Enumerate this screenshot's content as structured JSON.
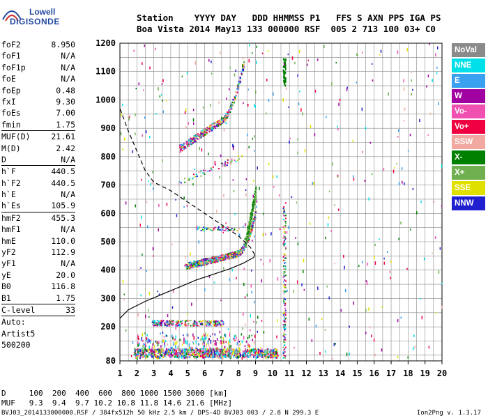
{
  "logo": {
    "line1": "Lowell",
    "line2": "DIGISONDE"
  },
  "header": {
    "line1": "Station    YYYY DAY   DDD HHMMSS P1   FFS S AXN PPS IGA PS",
    "line2": "Boa Vista 2014 May13 133 000000 RSF  005 2 713 100 03+ C0"
  },
  "params": [
    {
      "label": "foF2",
      "value": "8.950"
    },
    {
      "label": "foF1",
      "value": "N/A"
    },
    {
      "label": "foF1p",
      "value": "N/A"
    },
    {
      "label": "foE",
      "value": "N/A"
    },
    {
      "label": "foEp",
      "value": "0.48"
    },
    {
      "label": "fxI",
      "value": "9.30"
    },
    {
      "label": "foEs",
      "value": "7.00"
    },
    {
      "label": "fmin",
      "value": "1.75"
    },
    {
      "sep": true
    },
    {
      "label": "MUF(D)",
      "value": "21.61"
    },
    {
      "label": "M(D)",
      "value": "2.42"
    },
    {
      "label": "D",
      "value": "N/A"
    },
    {
      "sep": true
    },
    {
      "label": "h`F",
      "value": "440.5"
    },
    {
      "label": "h`F2",
      "value": "440.5"
    },
    {
      "label": "h`E",
      "value": "N/A"
    },
    {
      "label": "h`Es",
      "value": "105.9"
    },
    {
      "sep": true
    },
    {
      "label": "hmF2",
      "value": "455.3"
    },
    {
      "label": "hmF1",
      "value": "N/A"
    },
    {
      "label": "hmE",
      "value": "110.0"
    },
    {
      "label": "yF2",
      "value": "112.9"
    },
    {
      "label": "yF1",
      "value": "N/A"
    },
    {
      "label": "yE",
      "value": "20.0"
    },
    {
      "label": "B0",
      "value": "116.8"
    },
    {
      "label": "B1",
      "value": "1.75"
    },
    {
      "sep": true
    },
    {
      "label": "C-level",
      "value": "33"
    },
    {
      "sep": true
    },
    {
      "label": "Auto:",
      "value": ""
    },
    {
      "label": "Artist5",
      "value": ""
    },
    {
      "label": "500200",
      "value": ""
    }
  ],
  "legend": [
    {
      "label": "NoVal",
      "color": "#8a8a8a"
    },
    {
      "label": "NNE",
      "color": "#00e0e8"
    },
    {
      "label": "E",
      "color": "#3aa0f0"
    },
    {
      "label": "W",
      "color": "#a000a0"
    },
    {
      "label": "Vo-",
      "color": "#f050b0"
    },
    {
      "label": "Vo+",
      "color": "#f00040"
    },
    {
      "label": "SSW",
      "color": "#f0a8a0"
    },
    {
      "label": "X-",
      "color": "#008000"
    },
    {
      "label": "X+",
      "color": "#70b050"
    },
    {
      "label": "SSE",
      "color": "#e0e000"
    },
    {
      "label": "NNW",
      "color": "#2020d0"
    }
  ],
  "axes": {
    "x_ticks": [
      "1",
      "2",
      "3",
      "4",
      "5",
      "6",
      "7",
      "8",
      "9",
      "10",
      "11",
      "12",
      "13",
      "14",
      "15",
      "16",
      "17",
      "18",
      "19",
      "20"
    ],
    "y_ticks": [
      "80",
      "200",
      "300",
      "400",
      "500",
      "600",
      "700",
      "800",
      "900",
      "1000",
      "1100",
      "1200"
    ]
  },
  "chart_data": {
    "type": "scatter",
    "xlim": [
      1,
      20
    ],
    "ylim": [
      80,
      1200
    ],
    "grid": true,
    "profile_solid": [
      [
        1.0,
        230
      ],
      [
        1.5,
        260
      ],
      [
        2.5,
        290
      ],
      [
        3.5,
        315
      ],
      [
        4.5,
        340
      ],
      [
        5.5,
        365
      ],
      [
        6.5,
        385
      ],
      [
        7.5,
        405
      ],
      [
        8.3,
        425
      ],
      [
        8.9,
        445
      ],
      [
        8.95,
        455
      ]
    ],
    "profile_dashed": [
      [
        8.95,
        455
      ],
      [
        8.7,
        480
      ],
      [
        8.0,
        520
      ],
      [
        7.0,
        560
      ],
      [
        6.0,
        600
      ],
      [
        5.0,
        640
      ],
      [
        4.0,
        680
      ],
      [
        3.0,
        710
      ],
      [
        2.5,
        750
      ],
      [
        2.0,
        820
      ],
      [
        1.5,
        890
      ],
      [
        1.0,
        970
      ]
    ]
  },
  "bottom": {
    "d_line": "D     100  200  400  600  800 1000 1500 3000 [km]",
    "muf_line": "MUF   9.3  9.4  9.7 10.2 10.8 11.8 14.6 21.6 [MHz]"
  },
  "footer": {
    "file": "BVJ03_2014133000000.RSF / 384fx512h 50 kHz 2.5 km / DPS-4D BVJ03 003 / 2.8 N 299.3 E",
    "version": "Ion2Png v. 1.3.17"
  }
}
